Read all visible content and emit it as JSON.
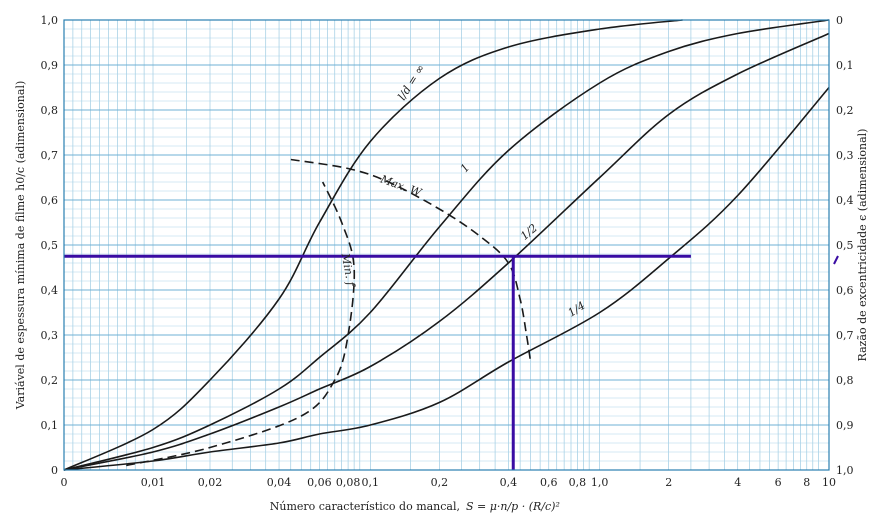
{
  "chart_data": {
    "type": "line",
    "xlabel": "Número característico do mancal,",
    "xlabel_formula": "S = μ·n/p · (R/c)²",
    "ylabel_left": "Variável de espessura mínima de filme h0/c (adimensional)",
    "ylabel_right": "Razão de excentricidade ϵ (adimensional)",
    "x_scale": "log with 0 at origin",
    "xlim": [
      0,
      10
    ],
    "ylim": [
      0,
      1
    ],
    "x_ticks": [
      "0",
      "0,01",
      "0,02",
      "0,04",
      "0,06",
      "0,08",
      "0,1",
      "0,2",
      "0,4",
      "0,6",
      "0,8",
      "1,0",
      "2",
      "4",
      "6",
      "8",
      "10"
    ],
    "y_ticks_left": [
      "0",
      "0,1",
      "0,2",
      "0,3",
      "0,4",
      "0,5",
      "0,6",
      "0,7",
      "0,8",
      "0,9",
      "1,0"
    ],
    "y_ticks_right": [
      "1,0",
      "0,9",
      "0,8",
      "0,7",
      "0,6",
      "0,5",
      "0,4",
      "0,3",
      "0,2",
      "0,1",
      "0"
    ],
    "grid": true,
    "series": [
      {
        "name": "l/d = ∞",
        "style": "solid",
        "points": [
          [
            0,
            0
          ],
          [
            0.01,
            0.09
          ],
          [
            0.02,
            0.2
          ],
          [
            0.04,
            0.38
          ],
          [
            0.06,
            0.55
          ],
          [
            0.1,
            0.73
          ],
          [
            0.2,
            0.87
          ],
          [
            0.4,
            0.94
          ],
          [
            1,
            0.98
          ],
          [
            2.3,
            1
          ]
        ]
      },
      {
        "name": "1",
        "style": "solid",
        "points": [
          [
            0,
            0
          ],
          [
            0.01,
            0.05
          ],
          [
            0.02,
            0.1
          ],
          [
            0.04,
            0.18
          ],
          [
            0.06,
            0.25
          ],
          [
            0.1,
            0.35
          ],
          [
            0.2,
            0.54
          ],
          [
            0.4,
            0.71
          ],
          [
            1,
            0.86
          ],
          [
            2,
            0.93
          ],
          [
            4,
            0.97
          ],
          [
            10,
            1
          ]
        ]
      },
      {
        "name": "1/2",
        "style": "solid",
        "points": [
          [
            0,
            0
          ],
          [
            0.01,
            0.04
          ],
          [
            0.02,
            0.08
          ],
          [
            0.04,
            0.14
          ],
          [
            0.06,
            0.18
          ],
          [
            0.1,
            0.23
          ],
          [
            0.2,
            0.33
          ],
          [
            0.4,
            0.46
          ],
          [
            1,
            0.65
          ],
          [
            2,
            0.79
          ],
          [
            4,
            0.88
          ],
          [
            10,
            0.97
          ]
        ]
      },
      {
        "name": "1/4",
        "style": "solid",
        "points": [
          [
            0,
            0
          ],
          [
            0.01,
            0.02
          ],
          [
            0.02,
            0.04
          ],
          [
            0.04,
            0.06
          ],
          [
            0.06,
            0.08
          ],
          [
            0.1,
            0.1
          ],
          [
            0.2,
            0.15
          ],
          [
            0.4,
            0.24
          ],
          [
            1,
            0.35
          ],
          [
            2,
            0.47
          ],
          [
            4,
            0.61
          ],
          [
            10,
            0.85
          ]
        ]
      },
      {
        "name": "Max. W",
        "style": "dashed",
        "points": [
          [
            0.045,
            0.69
          ],
          [
            0.08,
            0.67
          ],
          [
            0.12,
            0.64
          ],
          [
            0.2,
            0.58
          ],
          [
            0.3,
            0.52
          ],
          [
            0.4,
            0.46
          ],
          [
            0.45,
            0.38
          ],
          [
            0.48,
            0.3
          ],
          [
            0.5,
            0.24
          ]
        ]
      },
      {
        "name": "Min. f",
        "style": "dashed",
        "points": [
          [
            0.007,
            0.01
          ],
          [
            0.02,
            0.05
          ],
          [
            0.05,
            0.12
          ],
          [
            0.07,
            0.2
          ],
          [
            0.08,
            0.3
          ],
          [
            0.085,
            0.45
          ],
          [
            0.075,
            0.55
          ],
          [
            0.062,
            0.64
          ]
        ]
      }
    ],
    "annotations": [
      {
        "type": "hline",
        "y": 0.475,
        "x_from": 0,
        "x_to": 2.5,
        "color": "#3a0ca3"
      },
      {
        "type": "vline",
        "x": 0.42,
        "y_from": 0,
        "y_to": 0.475,
        "color": "#3a0ca3"
      }
    ],
    "curve_labels": [
      "l/d = ∞",
      "1",
      "1/2",
      "1/4",
      "Max. W",
      "Min. f"
    ]
  }
}
